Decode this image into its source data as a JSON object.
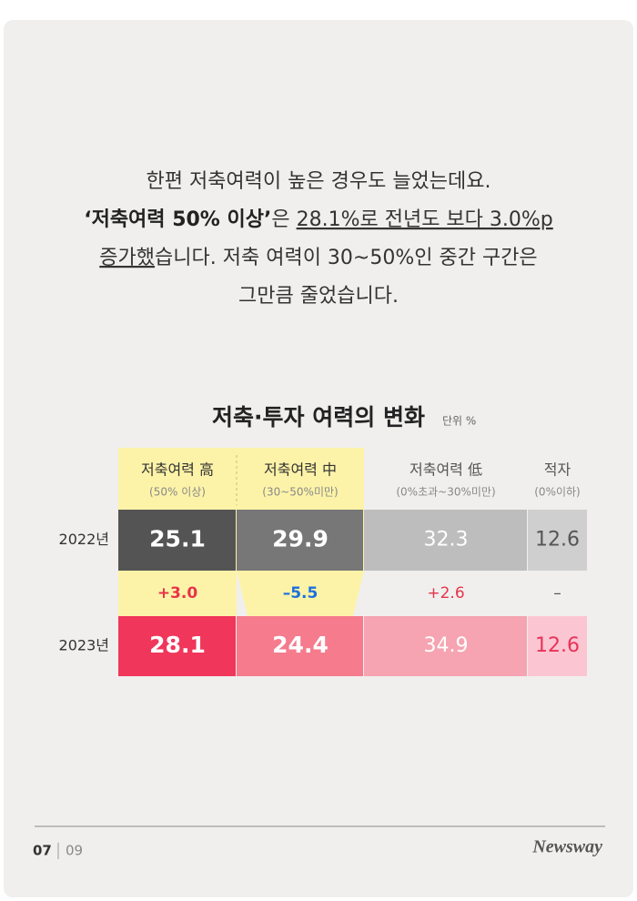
{
  "body": {
    "lines": [
      [
        "한편 저축여력이 높은 경우도 늘었는데요."
      ],
      [
        "‘저축여력 50% 이상’",
        "은 ",
        "28.1%로 전년도 보다 3.0%p"
      ],
      [
        "증가했",
        "습니다. 저축 여력이 30~50%인 중간 구간은"
      ],
      [
        "그만큼 줄었습니다."
      ]
    ]
  },
  "table": {
    "title": "저축·투자 여력의 변화",
    "unit": "단위 %",
    "columns": [
      {
        "label": "저축여력 高",
        "sub": "(50% 이상)"
      },
      {
        "label": "저축여력 中",
        "sub": "(30~50%미만)"
      },
      {
        "label": "저축여력 低",
        "sub": "(0%초과~30%미만)"
      },
      {
        "label": "적자",
        "sub": "(0%이하)"
      }
    ],
    "rows": [
      {
        "label": "2022년",
        "values": [
          25.1,
          29.9,
          32.3,
          12.6
        ]
      },
      {
        "label": null,
        "values": [
          "+3.0",
          "–5.5",
          "+2.6",
          "–"
        ]
      },
      {
        "label": "2023년",
        "values": [
          28.1,
          24.4,
          34.9,
          12.6
        ]
      }
    ]
  },
  "footer": {
    "page": "07",
    "total": "09",
    "brand": "Newsway"
  }
}
